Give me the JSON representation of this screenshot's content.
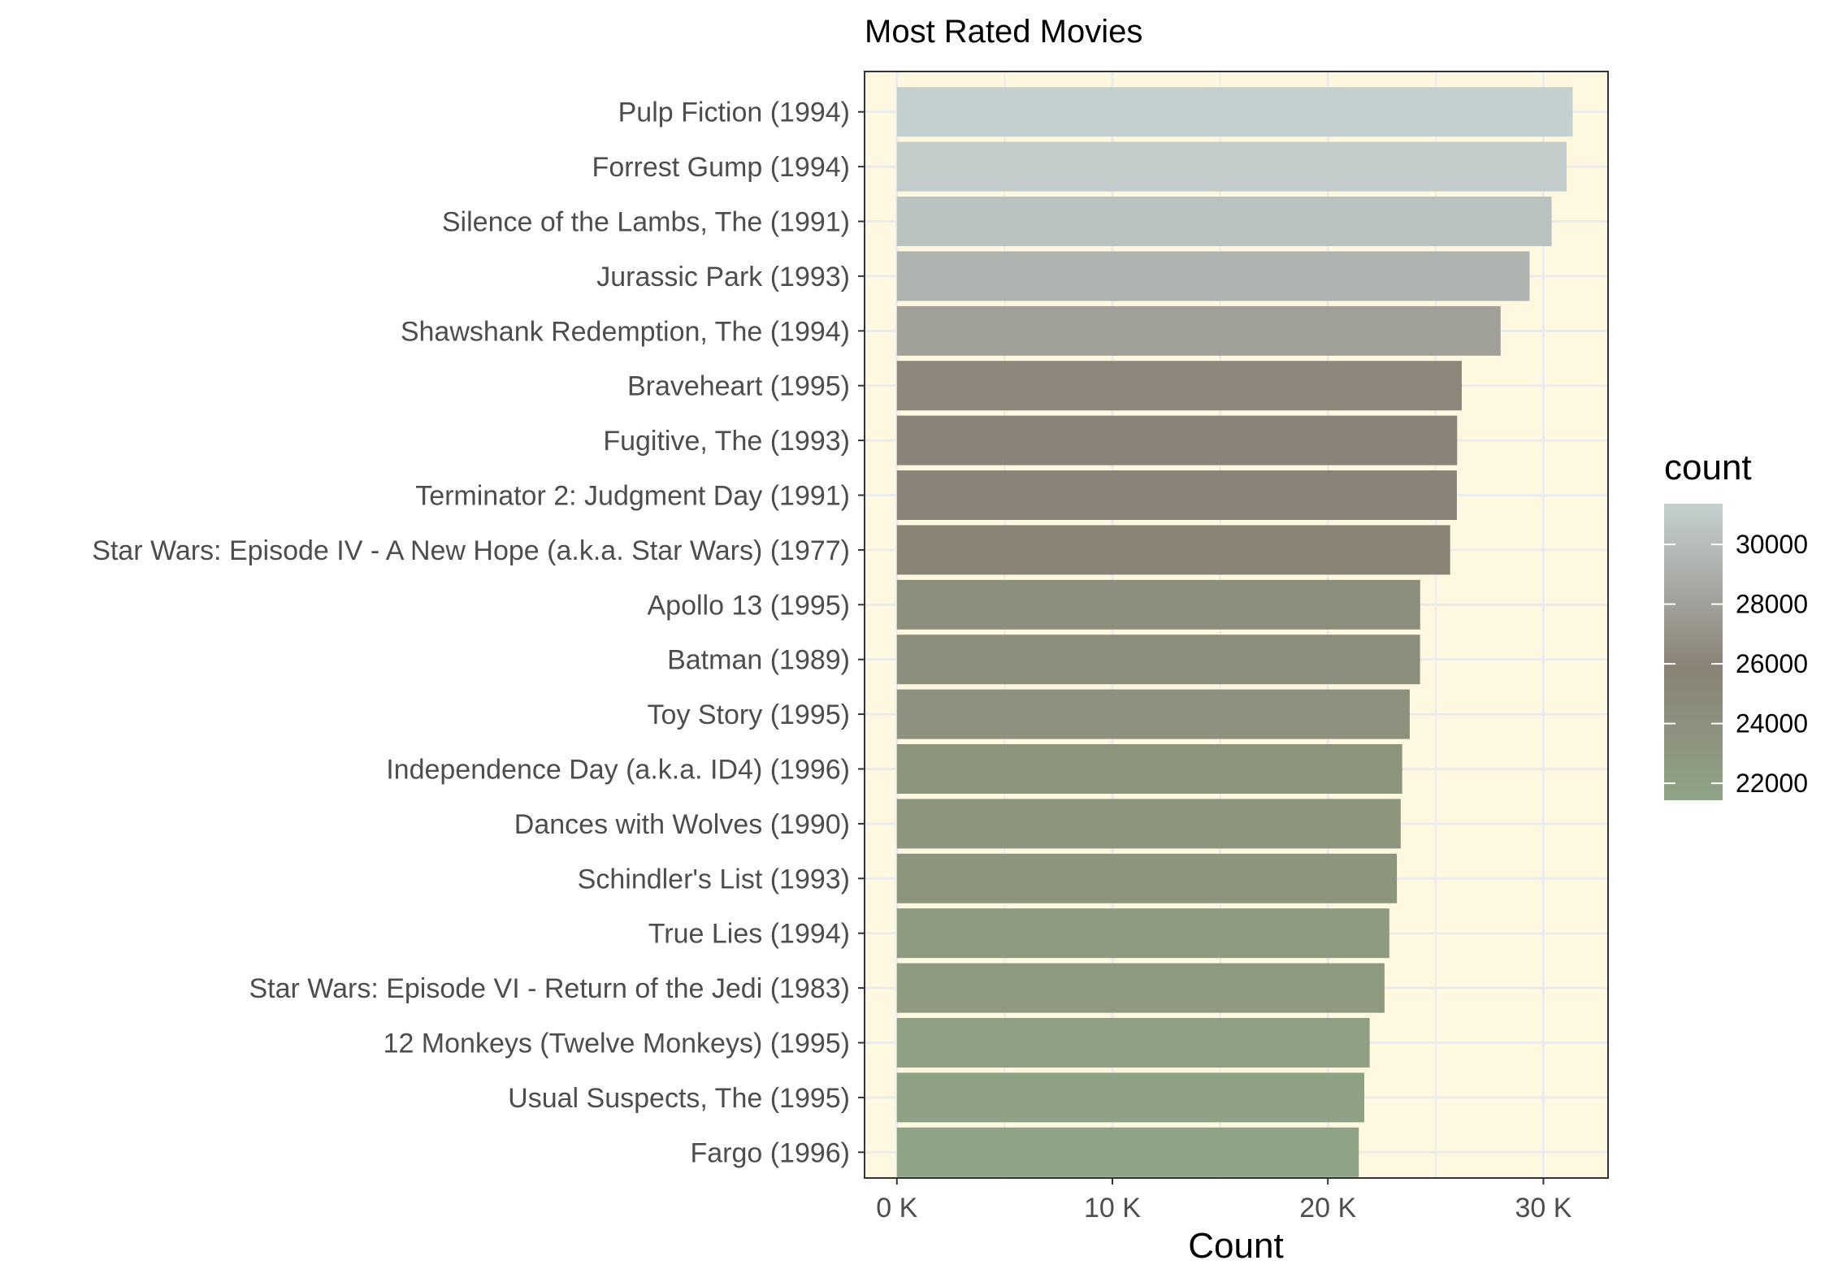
{
  "chart_data": {
    "type": "bar",
    "orientation": "horizontal",
    "title": "Most Rated Movies",
    "xlabel": "Count",
    "ylabel": "",
    "xlim": [
      -1500,
      33000
    ],
    "x_ticks": [
      {
        "value": 0,
        "label": "0 K"
      },
      {
        "value": 10000,
        "label": "10 K"
      },
      {
        "value": 20000,
        "label": "20 K"
      },
      {
        "value": 30000,
        "label": "30 K"
      }
    ],
    "categories": [
      "Pulp Fiction (1994)",
      "Forrest Gump (1994)",
      "Silence of the Lambs, The (1991)",
      "Jurassic Park (1993)",
      "Shawshank Redemption, The (1994)",
      "Braveheart (1995)",
      "Fugitive, The (1993)",
      "Terminator 2: Judgment Day (1991)",
      "Star Wars: Episode IV - A New Hope (a.k.a. Star Wars) (1977)",
      "Apollo 13 (1995)",
      "Batman (1989)",
      "Toy Story (1995)",
      "Independence Day (a.k.a. ID4) (1996)",
      "Dances with Wolves (1990)",
      "Schindler's List (1993)",
      "True Lies (1994)",
      "Star Wars: Episode VI - Return of the Jedi (1983)",
      "12 Monkeys (Twelve Monkeys) (1995)",
      "Usual Suspects, The (1995)",
      "Fargo (1996)"
    ],
    "values": [
      31362,
      31079,
      30382,
      29360,
      28015,
      26212,
      25998,
      25984,
      25674,
      24284,
      24277,
      23798,
      23449,
      23378,
      23201,
      22850,
      22628,
      21940,
      21688,
      21433
    ],
    "legend": {
      "title": "count",
      "placement": "right",
      "type": "colorbar",
      "range": [
        21433,
        31362
      ],
      "ticks": [
        22000,
        24000,
        26000,
        28000,
        30000
      ],
      "tick_labels": [
        "22000",
        "24000",
        "26000",
        "28000",
        "30000"
      ],
      "colors": {
        "low": "#8ea385",
        "mid": "#8a8276",
        "high": "#c4d0d0"
      }
    },
    "panel_background": "#fff8e0",
    "grid": true
  }
}
